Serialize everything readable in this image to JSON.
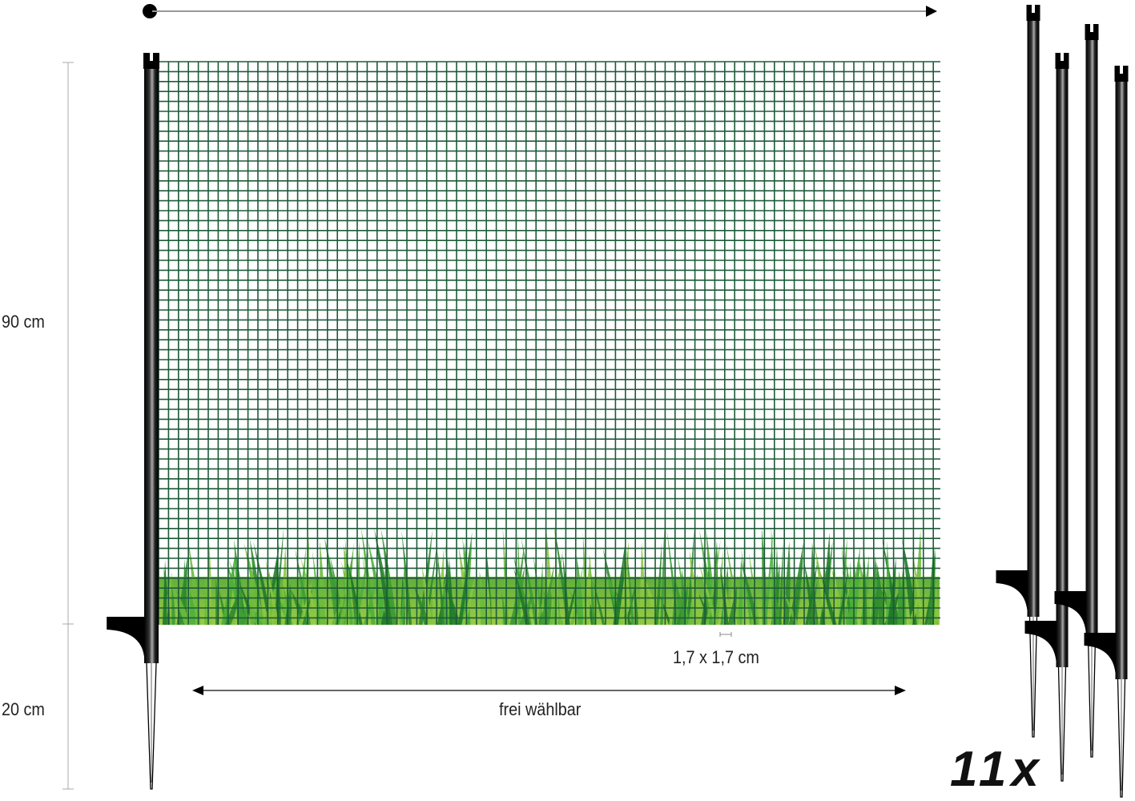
{
  "labels": {
    "height_above": "90 cm",
    "height_below": "20 cm",
    "mesh_size": "1,7 x 1,7 cm",
    "length": "frei wählbar",
    "pole_count": "11x"
  },
  "colors": {
    "mesh": "#1f5a3a",
    "grass_dark": "#2e8b2e",
    "grass_light": "#8cc63f",
    "pole": "#111111"
  }
}
